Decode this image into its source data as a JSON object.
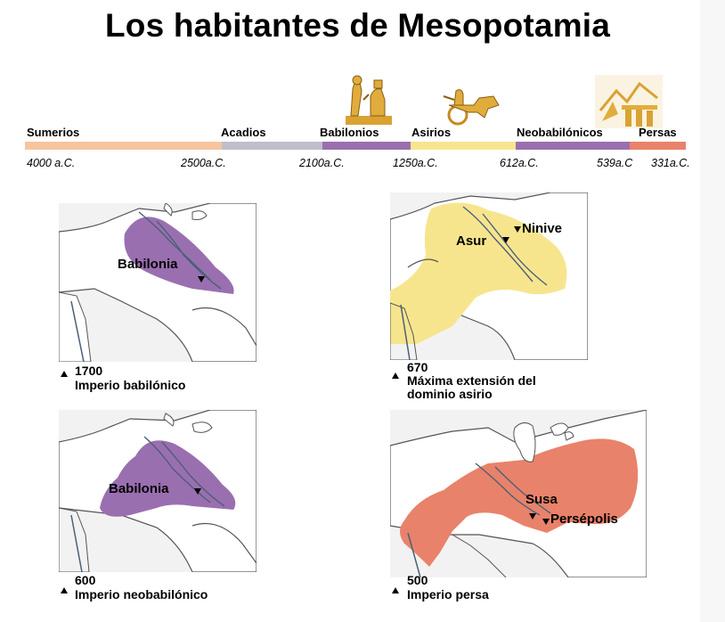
{
  "title": "Los habitantes de Mesopotamia",
  "timeline": {
    "civilizations": [
      "Sumerios",
      "Acadios",
      "Babilonios",
      "Asirios",
      "Neobabilónicos",
      "Persas"
    ],
    "dates": [
      "4000 a.C.",
      "2500a.C.",
      "2100a.C.",
      "1250a.C.",
      "612a.C.",
      "539a.C",
      "331a.C."
    ],
    "colors": {
      "Sumerios": "#f7c49d",
      "Acadios": "#bfbfc9",
      "Babilonios": "#9a6fb0",
      "Asirios": "#f7e58e",
      "Neobabilónicos": "#9a6fb0",
      "Persas": "#e9826a"
    }
  },
  "maps": [
    {
      "year": "1700",
      "caption": "Imperio babilónico",
      "cities": [
        "Babilonia"
      ],
      "color": "#9a6fb0"
    },
    {
      "year": "670",
      "caption_line1": "Máxima extensión del",
      "caption_line2": "dominio asirio",
      "cities": [
        "Asur",
        "Ninive"
      ],
      "color": "#f7e58e"
    },
    {
      "year": "600",
      "caption": "Imperio neobabilónico",
      "cities": [
        "Babilonia"
      ],
      "color": "#9a6fb0"
    },
    {
      "year": "500",
      "caption": "Imperio persa",
      "cities": [
        "Susa",
        "Persépolis"
      ],
      "color": "#e9826a"
    }
  ],
  "icons": [
    "babylonian-relief-icon",
    "assyrian-chariot-icon",
    "persian-palace-icon"
  ]
}
